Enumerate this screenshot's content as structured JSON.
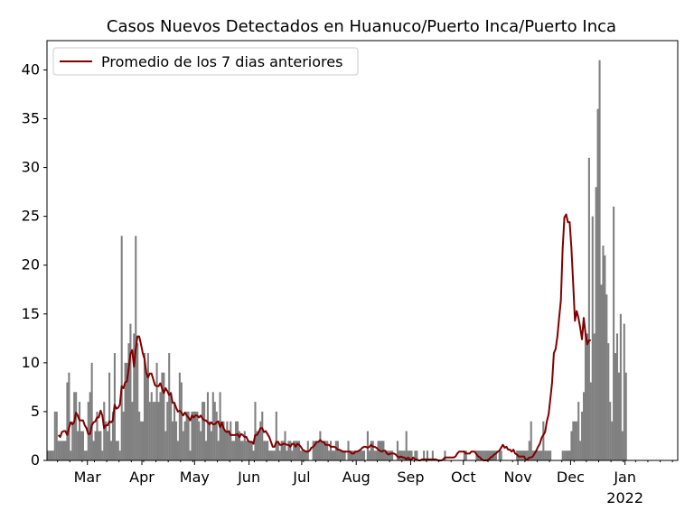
{
  "chart_data": {
    "type": "bar",
    "title": "Casos Nuevos Detectados en Huanuco/Puerto Inca/Puerto Inca",
    "xlabel": "",
    "ylabel": "",
    "ylim": [
      0,
      43
    ],
    "yticks": [
      0,
      5,
      10,
      15,
      20,
      25,
      30,
      35,
      40
    ],
    "xlim_days": [
      0,
      359
    ],
    "x_start_date": "2021-02-06",
    "xticks": [
      {
        "day": 23,
        "label": "Mar"
      },
      {
        "day": 54,
        "label": "Apr"
      },
      {
        "day": 84,
        "label": "May"
      },
      {
        "day": 115,
        "label": "Jun"
      },
      {
        "day": 145,
        "label": "Jul"
      },
      {
        "day": 176,
        "label": "Aug"
      },
      {
        "day": 207,
        "label": "Sep"
      },
      {
        "day": 237,
        "label": "Oct"
      },
      {
        "day": 268,
        "label": "Nov"
      },
      {
        "day": 298,
        "label": "Dec"
      },
      {
        "day": 329,
        "label": "Jan",
        "sublabel": "2022"
      }
    ],
    "grid": false,
    "legend": {
      "position": "top-left",
      "entries": [
        {
          "label": "Promedio de los 7 dias anteriores",
          "color": "#800000"
        }
      ]
    },
    "bar_color": "#808080",
    "line_color": "#800000",
    "daily_cases": [
      1,
      1,
      1,
      1,
      5,
      5,
      2,
      2,
      2,
      2,
      2,
      8,
      9,
      1,
      4,
      7,
      7,
      3,
      6,
      3,
      3,
      1,
      1,
      6,
      7,
      10,
      2,
      3,
      5,
      3,
      3,
      1,
      6,
      4,
      3,
      9,
      2,
      5,
      11,
      2,
      2,
      1,
      23,
      5,
      10,
      10,
      12,
      14,
      6,
      13,
      23,
      12,
      5,
      4,
      4,
      11,
      9,
      11,
      6,
      7,
      6,
      6,
      10,
      6,
      7,
      9,
      9,
      3,
      6,
      11,
      7,
      4,
      6,
      4,
      2,
      9,
      8,
      3,
      4,
      5,
      5,
      1,
      5,
      5,
      5,
      5,
      4,
      3,
      6,
      6,
      2,
      7,
      4,
      3,
      7,
      6,
      5,
      2,
      7,
      4,
      4,
      3,
      4,
      3,
      4,
      2,
      2,
      4,
      4,
      3,
      2,
      2,
      3,
      2,
      2,
      2,
      2,
      1,
      6,
      3,
      3,
      4,
      5,
      2,
      2,
      2,
      1,
      1,
      1,
      1,
      5,
      2,
      1,
      2,
      2,
      3,
      1,
      2,
      2,
      1,
      2,
      2,
      2,
      2,
      1,
      1,
      1,
      1,
      2,
      0,
      0,
      2,
      2,
      2,
      2,
      3,
      2,
      2,
      2,
      2,
      1,
      2,
      1,
      1,
      2,
      2,
      1,
      1,
      1,
      1,
      0,
      2,
      1,
      1,
      1,
      1,
      1,
      1,
      1,
      1,
      1,
      0,
      3,
      1,
      2,
      2,
      1,
      1,
      2,
      2,
      2,
      2,
      1,
      1,
      1,
      1,
      1,
      0,
      0,
      2,
      1,
      1,
      1,
      1,
      3,
      1,
      1,
      1,
      0,
      1,
      1,
      0,
      0,
      0,
      1,
      0,
      1,
      0,
      0,
      1,
      0,
      0,
      0,
      0,
      0,
      0,
      1,
      0,
      0,
      0,
      0,
      0,
      0,
      0,
      0,
      0,
      0,
      1,
      1,
      0,
      0,
      0,
      0,
      0,
      1,
      1,
      1,
      1,
      1,
      1,
      1,
      1,
      1,
      1,
      1,
      1,
      0,
      1,
      1,
      0,
      0,
      0,
      0,
      0,
      0,
      0,
      0,
      1,
      1,
      1,
      1,
      1,
      1,
      1,
      2,
      4,
      1,
      1,
      1,
      1,
      1,
      1,
      4,
      1,
      1,
      1,
      1,
      0,
      0,
      0,
      0,
      0,
      0,
      1,
      1,
      1,
      1,
      1,
      3,
      4,
      4,
      4,
      6,
      2,
      5,
      7,
      13,
      13,
      31,
      8,
      25,
      13,
      28,
      36,
      41,
      18,
      22,
      21,
      17,
      12,
      6,
      4,
      26,
      11,
      13,
      9,
      15,
      3,
      14,
      9
    ],
    "rolling_avg_7d": [
      null,
      null,
      null,
      null,
      null,
      null,
      2.6,
      2.4,
      2.9,
      3.0,
      3.0,
      2.6,
      3.3,
      3.9,
      3.7,
      3.9,
      4.9,
      4.6,
      4.1,
      4.1,
      4.1,
      3.6,
      3.3,
      2.7,
      2.7,
      3.6,
      3.9,
      4.0,
      4.4,
      4.4,
      5.1,
      4.6,
      3.3,
      3.6,
      3.6,
      4.0,
      3.9,
      4.1,
      5.7,
      5.3,
      5.4,
      5.7,
      7.6,
      7.4,
      8.0,
      8.1,
      9.4,
      10.9,
      11.3,
      9.6,
      11.4,
      12.7,
      12.7,
      11.9,
      11.0,
      10.4,
      9.0,
      8.5,
      8.9,
      8.9,
      8.3,
      7.7,
      7.6,
      7.6,
      7.9,
      7.4,
      6.9,
      7.4,
      7.1,
      6.7,
      6.9,
      5.9,
      5.9,
      5.4,
      5.0,
      5.1,
      4.9,
      4.6,
      4.9,
      4.6,
      4.4,
      4.1,
      4.6,
      4.4,
      4.6,
      4.6,
      4.4,
      4.6,
      4.3,
      4.1,
      4.1,
      3.9,
      3.7,
      3.9,
      3.7,
      3.7,
      3.9,
      4.0,
      3.4,
      3.9,
      3.3,
      3.0,
      2.9,
      3.0,
      2.6,
      2.6,
      2.6,
      2.6,
      2.7,
      2.4,
      2.7,
      2.6,
      2.4,
      2.4,
      2.0,
      1.9,
      1.9,
      1.7,
      2.6,
      2.6,
      2.9,
      3.3,
      3.3,
      2.9,
      3.0,
      2.7,
      2.4,
      1.9,
      1.4,
      1.4,
      1.9,
      1.9,
      1.6,
      1.6,
      1.7,
      1.7,
      1.6,
      1.6,
      1.4,
      1.7,
      1.7,
      1.4,
      1.7,
      1.6,
      1.4,
      1.1,
      1.0,
      0.9,
      0.9,
      1.0,
      1.3,
      1.4,
      1.6,
      1.9,
      1.9,
      2.1,
      1.9,
      1.9,
      1.6,
      1.6,
      1.6,
      1.4,
      1.4,
      1.4,
      1.3,
      1.1,
      1.1,
      1.0,
      0.9,
      0.9,
      0.9,
      0.9,
      0.9,
      0.7,
      0.7,
      0.9,
      0.9,
      1.0,
      1.1,
      1.3,
      1.4,
      1.4,
      1.3,
      1.4,
      1.6,
      1.4,
      1.4,
      1.3,
      1.1,
      1.0,
      0.9,
      1.0,
      1.0,
      0.7,
      0.6,
      0.7,
      0.7,
      0.7,
      0.6,
      0.4,
      0.3,
      0.4,
      0.3,
      0.3,
      0.1,
      0.3,
      0.1,
      0.1,
      0.3,
      0.1,
      0.1,
      0.0,
      0.0,
      0.1,
      0.1,
      0.1,
      0.1,
      0.1,
      0.1,
      0.1,
      0.1,
      0.1,
      0.0,
      0.0,
      0.0,
      0.1,
      0.3,
      0.3,
      0.3,
      0.3,
      0.3,
      0.3,
      0.4,
      0.7,
      0.9,
      0.9,
      0.9,
      0.9,
      0.7,
      0.7,
      0.7,
      0.9,
      0.9,
      0.9,
      0.6,
      0.4,
      0.3,
      0.1,
      0.0,
      0.0,
      0.0,
      0.1,
      0.3,
      0.4,
      0.6,
      0.7,
      0.9,
      1.0,
      1.3,
      1.6,
      1.3,
      1.4,
      1.1,
      1.1,
      0.9,
      1.1,
      0.7,
      0.6,
      0.4,
      0.4,
      0.4,
      0.4,
      0.1,
      0.1,
      0.3,
      0.3,
      0.4,
      0.7,
      1.0,
      1.4,
      1.7,
      2.3,
      2.6,
      2.9,
      4.0,
      4.7,
      6.3,
      8.0,
      11.0,
      11.4,
      12.7,
      14.6,
      16.4,
      21.7,
      24.9,
      25.2,
      24.4,
      24.4,
      21.7,
      18.1,
      14.3,
      15.3,
      14.6,
      13.6,
      12.4,
      14.6,
      13.0,
      11.9,
      12.3,
      12.3
    ]
  }
}
